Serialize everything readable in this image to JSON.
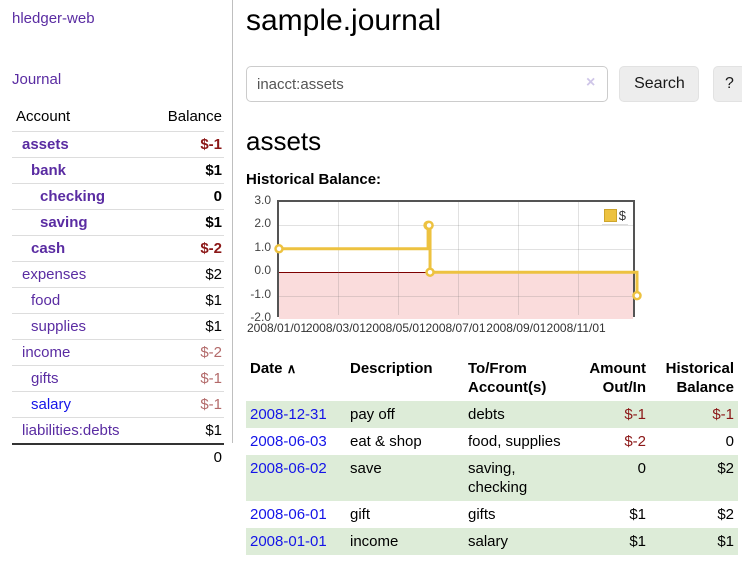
{
  "app": {
    "title": "hledger-web"
  },
  "sidebar": {
    "journal_link": "Journal",
    "accounts": {
      "col_account": "Account",
      "col_balance": "Balance",
      "rows": [
        {
          "name": "assets",
          "balance": "$-1",
          "indent": 0,
          "bold": true,
          "neg": "strong",
          "link_color": "purple"
        },
        {
          "name": "bank",
          "balance": "$1",
          "indent": 1,
          "bold": true,
          "neg": "",
          "link_color": "purple"
        },
        {
          "name": "checking",
          "balance": "0",
          "indent": 2,
          "bold": true,
          "neg": "",
          "link_color": "purple"
        },
        {
          "name": "saving",
          "balance": "$1",
          "indent": 2,
          "bold": true,
          "neg": "",
          "link_color": "purple"
        },
        {
          "name": "cash",
          "balance": "$-2",
          "indent": 1,
          "bold": true,
          "neg": "strong",
          "link_color": "purple"
        },
        {
          "name": "expenses",
          "balance": "$2",
          "indent": 0,
          "bold": false,
          "neg": "",
          "link_color": "purple"
        },
        {
          "name": "food",
          "balance": "$1",
          "indent": 1,
          "bold": false,
          "neg": "",
          "link_color": "purple"
        },
        {
          "name": "supplies",
          "balance": "$1",
          "indent": 1,
          "bold": false,
          "neg": "",
          "link_color": "purple"
        },
        {
          "name": "income",
          "balance": "$-2",
          "indent": 0,
          "bold": false,
          "neg": "muted",
          "link_color": "purple"
        },
        {
          "name": "gifts",
          "balance": "$-1",
          "indent": 1,
          "bold": false,
          "neg": "muted",
          "link_color": "purple"
        },
        {
          "name": "salary",
          "balance": "$-1",
          "indent": 1,
          "bold": false,
          "neg": "muted",
          "link_color": "blue"
        },
        {
          "name": "liabilities:debts",
          "balance": "$1",
          "indent": 0,
          "bold": false,
          "neg": "",
          "link_color": "purple"
        }
      ],
      "total": "0"
    }
  },
  "main": {
    "title": "sample.journal",
    "search": {
      "value": "inacct:assets",
      "clear_icon": "×",
      "button_label": "Search",
      "help_label": "?"
    },
    "account_heading": "assets",
    "chart_label": "Historical Balance:"
  },
  "chart_data": {
    "type": "line",
    "title": "Historical Balance",
    "style": "step",
    "xlim": [
      "2008-01-01",
      "2008-12-31"
    ],
    "ylim": [
      -2,
      3
    ],
    "y_ticks": [
      "3.0",
      "2.0",
      "1.0",
      "0.0",
      "-1.0",
      "-2.0"
    ],
    "x_ticks": [
      {
        "label": "2008/01/01",
        "date": "2008-01-01"
      },
      {
        "label": "2008/03/01",
        "date": "2008-03-01"
      },
      {
        "label": "2008/05/01",
        "date": "2008-05-01"
      },
      {
        "label": "2008/07/01",
        "date": "2008-07-01"
      },
      {
        "label": "2008/09/01",
        "date": "2008-09-01"
      },
      {
        "label": "2008/11/01",
        "date": "2008-11-01"
      }
    ],
    "series": [
      {
        "name": "$",
        "color": "#edc240",
        "points": [
          {
            "date": "2008-01-01",
            "value": 1
          },
          {
            "date": "2008-06-01",
            "value": 2
          },
          {
            "date": "2008-06-02",
            "value": 2
          },
          {
            "date": "2008-06-03",
            "value": 0
          },
          {
            "date": "2008-12-31",
            "value": -1
          }
        ]
      }
    ],
    "legend": {
      "label": "$",
      "swatch_color": "#edc240",
      "position": "top-right"
    },
    "negative_fill": "#fadcdc",
    "zero_line_color": "#7d0000",
    "grid": true
  },
  "register": {
    "headers": {
      "date": "Date",
      "sort_icon": "∧",
      "description": "Description",
      "accounts": "To/From Account(s)",
      "amount": "Amount Out/In",
      "balance": "Historical Balance"
    },
    "rows": [
      {
        "date": "2008-12-31",
        "description": "pay off",
        "accounts": "debts",
        "amount": "$-1",
        "amount_neg": true,
        "balance": "$-1",
        "balance_neg": true,
        "shade": true
      },
      {
        "date": "2008-06-03",
        "description": "eat & shop",
        "accounts": "food, supplies",
        "amount": "$-2",
        "amount_neg": true,
        "balance": "0",
        "balance_neg": false,
        "shade": false
      },
      {
        "date": "2008-06-02",
        "description": "save",
        "accounts": "saving, checking",
        "amount": "0",
        "amount_neg": false,
        "balance": "$2",
        "balance_neg": false,
        "shade": true
      },
      {
        "date": "2008-06-01",
        "description": "gift",
        "accounts": "gifts",
        "amount": "$1",
        "amount_neg": false,
        "balance": "$2",
        "balance_neg": false,
        "shade": false
      },
      {
        "date": "2008-01-01",
        "description": "income",
        "accounts": "salary",
        "amount": "$1",
        "amount_neg": false,
        "balance": "$1",
        "balance_neg": false,
        "shade": true
      }
    ]
  }
}
